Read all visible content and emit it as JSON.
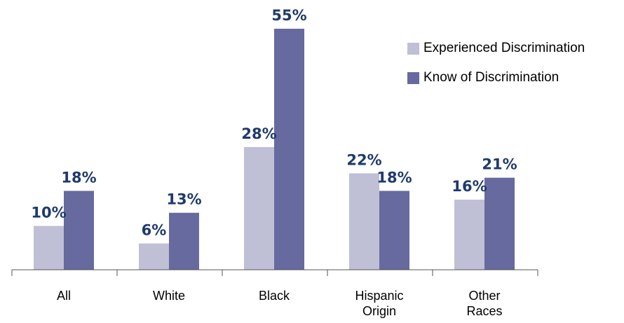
{
  "chart_data": {
    "type": "bar",
    "categories": [
      [
        "All"
      ],
      [
        "White"
      ],
      [
        "Black"
      ],
      [
        "Hispanic",
        "Origin"
      ],
      [
        "Other",
        "Races"
      ]
    ],
    "series": [
      {
        "name": "Experienced Discrimination",
        "values": [
          10,
          6,
          28,
          22,
          16
        ],
        "labels": [
          "10%",
          "6%",
          "28%",
          "22%",
          "16%"
        ],
        "color": "#bfbfd6"
      },
      {
        "name": "Know of Discrimination",
        "values": [
          18,
          13,
          55,
          18,
          21
        ],
        "labels": [
          "18%",
          "13%",
          "55%",
          "18%",
          "21%"
        ],
        "color": "#676a9e"
      }
    ],
    "value_label_color": "#1f3a6b",
    "ylim": [
      0,
      55
    ],
    "unit": "%",
    "legend_position": "top-right",
    "grid": false
  }
}
